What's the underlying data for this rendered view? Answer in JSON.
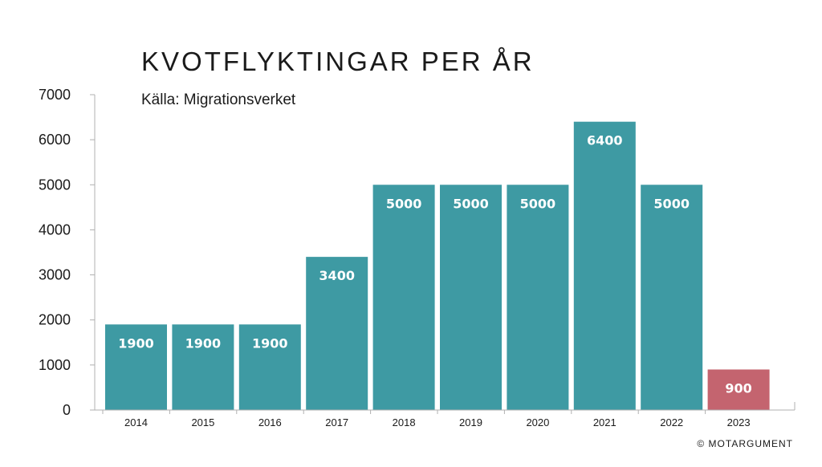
{
  "chart_data": {
    "type": "bar",
    "title": "KVOTFLYKTINGAR PER ÅR",
    "subtitle": "Källa: Migrationsverket",
    "categories": [
      "2014",
      "2015",
      "2016",
      "2017",
      "2018",
      "2019",
      "2020",
      "2021",
      "2022",
      "2023"
    ],
    "values": [
      1900,
      1900,
      1900,
      3400,
      5000,
      5000,
      5000,
      6400,
      5000,
      900
    ],
    "data_labels": [
      "1900",
      "1900",
      "1900",
      "3400",
      "5000",
      "5000",
      "5000",
      "6400",
      "5000",
      "900"
    ],
    "yticks": [
      0,
      1000,
      2000,
      3000,
      4000,
      5000,
      6000,
      7000
    ],
    "ytick_labels": [
      "0",
      "1000",
      "2000",
      "3000",
      "4000",
      "5000",
      "6000",
      "7000"
    ],
    "ylim": [
      0,
      7000
    ],
    "xlabel": "",
    "ylabel": "",
    "grid": false,
    "colors": {
      "bar": "#3e9aa3",
      "highlight": "#c4646f",
      "axis": "#b0b0b0"
    },
    "highlight_index": 9
  },
  "footer": {
    "copyright": "© MOTARGUMENT"
  }
}
